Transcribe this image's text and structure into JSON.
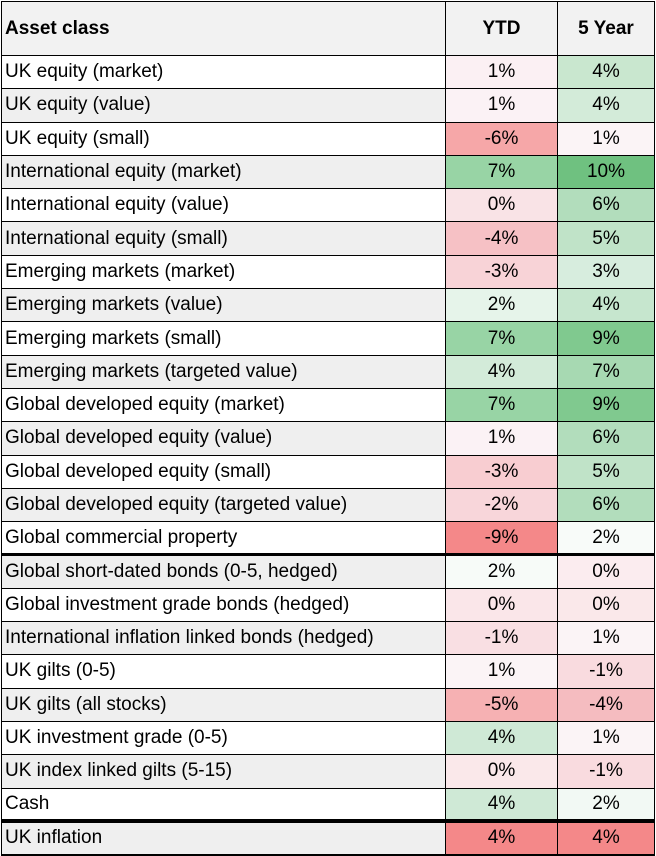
{
  "table": {
    "headers": {
      "asset": "Asset class",
      "ytd": "YTD",
      "five_year": "5 Year"
    },
    "rows": [
      {
        "asset": "UK equity (market)",
        "ytd": "1%",
        "five_year": "4%",
        "ytd_color": "#fbf0f3",
        "five_year_color": "#c9e7cf"
      },
      {
        "asset": "UK equity (value)",
        "ytd": "1%",
        "five_year": "4%",
        "ytd_color": "#fbf2f5",
        "five_year_color": "#d3ebd9"
      },
      {
        "asset": "UK equity (small)",
        "ytd": "-6%",
        "five_year": "1%",
        "ytd_color": "#f6a7a8",
        "five_year_color": "#fbf4f6"
      },
      {
        "asset": "International equity (market)",
        "ytd": "7%",
        "five_year": "10%",
        "ytd_color": "#98d4a5",
        "five_year_color": "#6fc180"
      },
      {
        "asset": "International equity (value)",
        "ytd": "0%",
        "five_year": "6%",
        "ytd_color": "#f9e3e6",
        "five_year_color": "#b2ddbc"
      },
      {
        "asset": "International equity (small)",
        "ytd": "-4%",
        "five_year": "5%",
        "ytd_color": "#f6c1c5",
        "five_year_color": "#c0e3c8"
      },
      {
        "asset": "Emerging markets (market)",
        "ytd": "-3%",
        "five_year": "3%",
        "ytd_color": "#f8d3d7",
        "five_year_color": "#d7edde"
      },
      {
        "asset": "Emerging markets (value)",
        "ytd": "2%",
        "five_year": "4%",
        "ytd_color": "#e6f4ea",
        "five_year_color": "#c6e6ce"
      },
      {
        "asset": "Emerging markets (small)",
        "ytd": "7%",
        "five_year": "9%",
        "ytd_color": "#98d4a5",
        "five_year_color": "#80c98f"
      },
      {
        "asset": "Emerging markets (targeted value)",
        "ytd": "4%",
        "five_year": "7%",
        "ytd_color": "#d3ebd9",
        "five_year_color": "#a7d9b2"
      },
      {
        "asset": "Global developed equity (market)",
        "ytd": "7%",
        "five_year": "9%",
        "ytd_color": "#98d4a5",
        "five_year_color": "#80c98f"
      },
      {
        "asset": "Global developed equity (value)",
        "ytd": "1%",
        "five_year": "6%",
        "ytd_color": "#fbf2f5",
        "five_year_color": "#b2ddbc"
      },
      {
        "asset": "Global developed equity (small)",
        "ytd": "-3%",
        "five_year": "5%",
        "ytd_color": "#f8cdd1",
        "five_year_color": "#c0e3c8"
      },
      {
        "asset": "Global developed equity (targeted value)",
        "ytd": "-2%",
        "five_year": "6%",
        "ytd_color": "#f8d6da",
        "five_year_color": "#b2ddbc"
      },
      {
        "asset": "Global commercial property",
        "ytd": "-9%",
        "five_year": "2%",
        "ytd_color": "#f48889",
        "five_year_color": "#f8fbf9"
      },
      {
        "asset": "Global short-dated bonds (0-5, hedged)",
        "ytd": "2%",
        "five_year": "0%",
        "ytd_color": "#f7fbf8",
        "five_year_color": "#fbecef"
      },
      {
        "asset": "Global investment grade bonds (hedged)",
        "ytd": "0%",
        "five_year": "0%",
        "ytd_color": "#fae6e9",
        "five_year_color": "#fae8ea"
      },
      {
        "asset": "International inflation linked bonds (hedged)",
        "ytd": "-1%",
        "five_year": "1%",
        "ytd_color": "#f9dfe3",
        "five_year_color": "#fbf4f6"
      },
      {
        "asset": "UK gilts (0-5)",
        "ytd": "1%",
        "five_year": "-1%",
        "ytd_color": "#fbf4f6",
        "five_year_color": "#f9dbdf"
      },
      {
        "asset": "UK gilts (all stocks)",
        "ytd": "-5%",
        "five_year": "-4%",
        "ytd_color": "#f6b1b3",
        "five_year_color": "#f5bcc0"
      },
      {
        "asset": "UK investment grade (0-5)",
        "ytd": "4%",
        "five_year": "1%",
        "ytd_color": "#cfe9d6",
        "five_year_color": "#fbf4f6"
      },
      {
        "asset": "UK index linked gilts (5-15)",
        "ytd": "0%",
        "five_year": "-1%",
        "ytd_color": "#fae8ea",
        "five_year_color": "#f9dbdf"
      },
      {
        "asset": "Cash",
        "ytd": "4%",
        "five_year": "2%",
        "ytd_color": "#cfe9d6",
        "five_year_color": "#f2f9f4"
      },
      {
        "asset": "UK inflation",
        "ytd": "4%",
        "five_year": "4%",
        "ytd_color": "#f48889",
        "five_year_color": "#f48889"
      }
    ]
  }
}
